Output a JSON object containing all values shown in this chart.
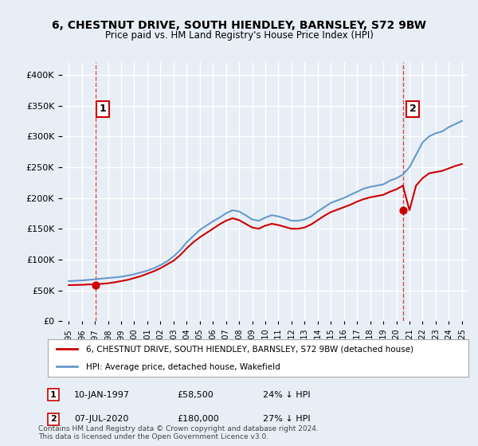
{
  "title": "6, CHESTNUT DRIVE, SOUTH HIENDLEY, BARNSLEY, S72 9BW",
  "subtitle": "Price paid vs. HM Land Registry's House Price Index (HPI)",
  "legend_line1": "6, CHESTNUT DRIVE, SOUTH HIENDLEY, BARNSLEY, S72 9BW (detached house)",
  "legend_line2": "HPI: Average price, detached house, Wakefield",
  "annotation1_label": "1",
  "annotation1_date": "10-JAN-1997",
  "annotation1_price": "£58,500",
  "annotation1_hpi": "24% ↓ HPI",
  "annotation2_label": "2",
  "annotation2_date": "07-JUL-2020",
  "annotation2_price": "£180,000",
  "annotation2_hpi": "27% ↓ HPI",
  "footnote": "Contains HM Land Registry data © Crown copyright and database right 2024.\nThis data is licensed under the Open Government Licence v3.0.",
  "sale_color": "#cc0000",
  "hpi_color": "#6699cc",
  "background_color": "#e8eef5",
  "plot_bg_color": "#e8eef5",
  "grid_color": "#ffffff",
  "ylim": [
    0,
    420000
  ],
  "yticks": [
    0,
    50000,
    100000,
    150000,
    200000,
    250000,
    300000,
    350000,
    400000
  ],
  "sale1_year": 1997.03,
  "sale1_value": 58500,
  "sale2_year": 2020.5,
  "sale2_value": 180000,
  "hpi_years": [
    1995,
    1995.5,
    1996,
    1996.5,
    1997,
    1997.5,
    1998,
    1998.5,
    1999,
    1999.5,
    2000,
    2000.5,
    2001,
    2001.5,
    2002,
    2002.5,
    2003,
    2003.5,
    2004,
    2004.5,
    2005,
    2005.5,
    2006,
    2006.5,
    2007,
    2007.5,
    2008,
    2008.5,
    2009,
    2009.5,
    2010,
    2010.5,
    2011,
    2011.5,
    2012,
    2012.5,
    2013,
    2013.5,
    2014,
    2014.5,
    2015,
    2015.5,
    2016,
    2016.5,
    2017,
    2017.5,
    2018,
    2018.5,
    2019,
    2019.5,
    2020,
    2020.5,
    2021,
    2021.5,
    2022,
    2022.5,
    2023,
    2023.5,
    2024,
    2024.5,
    2025
  ],
  "hpi_values": [
    65000,
    65500,
    66000,
    67000,
    68000,
    69000,
    70000,
    71000,
    72000,
    74000,
    76000,
    79000,
    82000,
    86000,
    91000,
    97000,
    105000,
    115000,
    128000,
    138000,
    148000,
    155000,
    162000,
    168000,
    175000,
    180000,
    178000,
    172000,
    165000,
    163000,
    168000,
    172000,
    170000,
    167000,
    163000,
    163000,
    165000,
    170000,
    178000,
    185000,
    192000,
    196000,
    200000,
    205000,
    210000,
    215000,
    218000,
    220000,
    222000,
    228000,
    232000,
    238000,
    250000,
    270000,
    290000,
    300000,
    305000,
    308000,
    315000,
    320000,
    325000
  ],
  "sale_years": [
    1995,
    1995.5,
    1996,
    1996.5,
    1997,
    1997.5,
    1998,
    1998.5,
    1999,
    1999.5,
    2000,
    2000.5,
    2001,
    2001.5,
    2002,
    2002.5,
    2003,
    2003.5,
    2004,
    2004.5,
    2005,
    2005.5,
    2006,
    2006.5,
    2007,
    2007.5,
    2008,
    2008.5,
    2009,
    2009.5,
    2010,
    2010.5,
    2011,
    2011.5,
    2012,
    2012.5,
    2013,
    2013.5,
    2014,
    2014.5,
    2015,
    2015.5,
    2016,
    2016.5,
    2017,
    2017.5,
    2018,
    2018.5,
    2019,
    2019.5,
    2020,
    2020.5,
    2021,
    2021.5,
    2022,
    2022.5,
    2023,
    2023.5,
    2024,
    2024.5,
    2025
  ],
  "sale_values": [
    58500,
    58700,
    59000,
    59500,
    60000,
    60500,
    61500,
    63000,
    65000,
    67000,
    70000,
    73000,
    77000,
    81000,
    86000,
    92000,
    98000,
    107000,
    118000,
    128000,
    136000,
    143000,
    150000,
    157000,
    163000,
    167000,
    164000,
    158000,
    152000,
    150000,
    155000,
    158000,
    156000,
    153000,
    150000,
    150000,
    152000,
    157000,
    164000,
    171000,
    177000,
    181000,
    185000,
    189000,
    194000,
    198000,
    201000,
    203000,
    205000,
    210000,
    214000,
    220000,
    180000,
    220000,
    232000,
    240000,
    242000,
    244000,
    248000,
    252000,
    255000
  ]
}
